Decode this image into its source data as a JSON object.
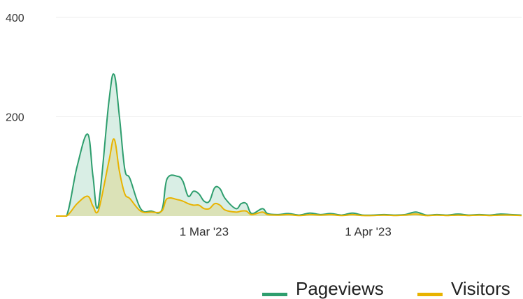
{
  "colors": {
    "pageviews": "#2e9e6e",
    "pageviews_fill": "rgba(46,158,110,0.18)",
    "visitors": "#e8b300",
    "visitors_fill": "rgba(232,179,0,0.20)"
  },
  "chart_data": {
    "type": "area",
    "x_start": "2023-02-01",
    "x_end": "2023-04-30",
    "ylim": [
      0,
      400
    ],
    "y_ticks": [
      200,
      400
    ],
    "x_ticks": [
      {
        "date": "2023-03-01",
        "label": "1 Mar '23"
      },
      {
        "date": "2023-04-01",
        "label": "1 Apr '23"
      }
    ],
    "grid": true,
    "legend_position": "bottom-right",
    "series": [
      {
        "name": "Pageviews",
        "key": "pageviews",
        "points": [
          [
            "2023-02-01",
            0
          ],
          [
            "2023-02-03",
            0
          ],
          [
            "2023-02-05",
            100
          ],
          [
            "2023-02-07",
            165
          ],
          [
            "2023-02-08",
            80
          ],
          [
            "2023-02-09",
            20
          ],
          [
            "2023-02-11",
            230
          ],
          [
            "2023-02-12",
            285
          ],
          [
            "2023-02-13",
            200
          ],
          [
            "2023-02-14",
            95
          ],
          [
            "2023-02-15",
            75
          ],
          [
            "2023-02-17",
            15
          ],
          [
            "2023-02-19",
            10
          ],
          [
            "2023-02-21",
            12
          ],
          [
            "2023-02-22",
            75
          ],
          [
            "2023-02-24",
            80
          ],
          [
            "2023-02-25",
            70
          ],
          [
            "2023-02-26",
            40
          ],
          [
            "2023-02-27",
            50
          ],
          [
            "2023-02-28",
            45
          ],
          [
            "2023-03-01",
            30
          ],
          [
            "2023-03-02",
            30
          ],
          [
            "2023-03-03",
            57
          ],
          [
            "2023-03-04",
            55
          ],
          [
            "2023-03-05",
            35
          ],
          [
            "2023-03-07",
            15
          ],
          [
            "2023-03-08",
            25
          ],
          [
            "2023-03-09",
            25
          ],
          [
            "2023-03-10",
            5
          ],
          [
            "2023-03-12",
            15
          ],
          [
            "2023-03-13",
            5
          ],
          [
            "2023-03-15",
            3
          ],
          [
            "2023-03-17",
            5
          ],
          [
            "2023-03-19",
            2
          ],
          [
            "2023-03-21",
            6
          ],
          [
            "2023-03-23",
            3
          ],
          [
            "2023-03-25",
            5
          ],
          [
            "2023-03-27",
            2
          ],
          [
            "2023-03-29",
            6
          ],
          [
            "2023-03-31",
            2
          ],
          [
            "2023-04-02",
            2
          ],
          [
            "2023-04-04",
            3
          ],
          [
            "2023-04-06",
            2
          ],
          [
            "2023-04-08",
            3
          ],
          [
            "2023-04-10",
            8
          ],
          [
            "2023-04-12",
            2
          ],
          [
            "2023-04-14",
            3
          ],
          [
            "2023-04-16",
            2
          ],
          [
            "2023-04-18",
            4
          ],
          [
            "2023-04-20",
            2
          ],
          [
            "2023-04-22",
            3
          ],
          [
            "2023-04-24",
            2
          ],
          [
            "2023-04-26",
            4
          ],
          [
            "2023-04-28",
            3
          ],
          [
            "2023-04-30",
            2
          ]
        ]
      },
      {
        "name": "Visitors",
        "key": "visitors",
        "points": [
          [
            "2023-02-01",
            0
          ],
          [
            "2023-02-03",
            0
          ],
          [
            "2023-02-05",
            25
          ],
          [
            "2023-02-07",
            40
          ],
          [
            "2023-02-08",
            20
          ],
          [
            "2023-02-09",
            10
          ],
          [
            "2023-02-11",
            110
          ],
          [
            "2023-02-12",
            155
          ],
          [
            "2023-02-13",
            90
          ],
          [
            "2023-02-14",
            45
          ],
          [
            "2023-02-15",
            35
          ],
          [
            "2023-02-17",
            10
          ],
          [
            "2023-02-19",
            8
          ],
          [
            "2023-02-21",
            10
          ],
          [
            "2023-02-22",
            35
          ],
          [
            "2023-02-24",
            33
          ],
          [
            "2023-02-25",
            30
          ],
          [
            "2023-02-26",
            25
          ],
          [
            "2023-02-27",
            22
          ],
          [
            "2023-02-28",
            22
          ],
          [
            "2023-03-01",
            15
          ],
          [
            "2023-03-02",
            15
          ],
          [
            "2023-03-03",
            25
          ],
          [
            "2023-03-04",
            22
          ],
          [
            "2023-03-05",
            12
          ],
          [
            "2023-03-07",
            8
          ],
          [
            "2023-03-08",
            10
          ],
          [
            "2023-03-09",
            10
          ],
          [
            "2023-03-10",
            3
          ],
          [
            "2023-03-12",
            8
          ],
          [
            "2023-03-13",
            3
          ],
          [
            "2023-03-15",
            2
          ],
          [
            "2023-03-17",
            3
          ],
          [
            "2023-03-19",
            1
          ],
          [
            "2023-03-21",
            3
          ],
          [
            "2023-03-23",
            2
          ],
          [
            "2023-03-25",
            3
          ],
          [
            "2023-03-27",
            1
          ],
          [
            "2023-03-29",
            3
          ],
          [
            "2023-03-31",
            1
          ],
          [
            "2023-04-02",
            1
          ],
          [
            "2023-04-04",
            2
          ],
          [
            "2023-04-06",
            1
          ],
          [
            "2023-04-08",
            2
          ],
          [
            "2023-04-10",
            4
          ],
          [
            "2023-04-12",
            1
          ],
          [
            "2023-04-14",
            2
          ],
          [
            "2023-04-16",
            1
          ],
          [
            "2023-04-18",
            2
          ],
          [
            "2023-04-20",
            1
          ],
          [
            "2023-04-22",
            2
          ],
          [
            "2023-04-24",
            1
          ],
          [
            "2023-04-26",
            2
          ],
          [
            "2023-04-28",
            2
          ],
          [
            "2023-04-30",
            1
          ]
        ]
      }
    ]
  }
}
